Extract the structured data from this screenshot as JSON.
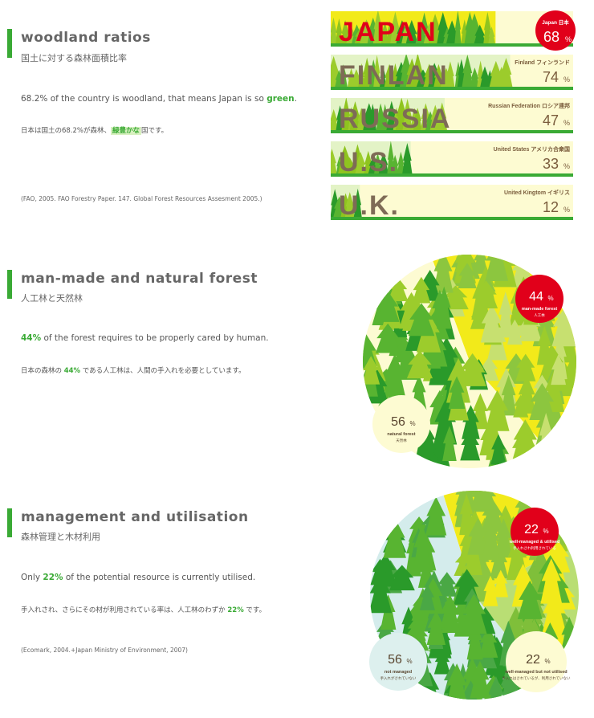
{
  "colors": {
    "accent": "#3aaa35",
    "red_badge": "#e1001a",
    "cream": "#fdfbd2",
    "yellow": "#f2ea1a",
    "light_green": "#9ccc2c",
    "mid_green": "#58b431",
    "dark_green": "#2a9a2a",
    "pale_blue": "#d4ecec",
    "country_letters": "#7e6b56"
  },
  "section1": {
    "title": "woodland ratios",
    "subtitle": "国土に対する森林面積比率",
    "body_en_pre": "68.2% of the country is woodland, that means Japan is so ",
    "body_en_hl": "green",
    "body_en_post": ".",
    "body_jp_pre": "日本は国土の68.2%が森林、",
    "body_jp_hl": "緑豊かな",
    "body_jp_post": "国です。",
    "source": "(FAO, 2005. FAO Forestry Paper. 147. Global Forest Resources Assesment 2005.)"
  },
  "section2": {
    "title": "man-made and natural forest",
    "subtitle": "人工林と天然林",
    "body_en_hl": "44%",
    "body_en_post": " of the forest requires to be properly cared by human.",
    "body_jp_pre": "日本の森林の ",
    "body_jp_hl": "44%",
    "body_jp_post": " である人工林は、人間の手入れを必要としています。"
  },
  "section3": {
    "title": "management and utilisation",
    "subtitle": "森林管理と木材利用",
    "body_en_pre": "Only ",
    "body_en_hl": "22%",
    "body_en_post": " of the potential resource is currently utilised.",
    "body_jp_pre": "手入れされ、さらにその材が利用されている率は、人工林のわずか ",
    "body_jp_hl": "22%",
    "body_jp_post": " です。",
    "source": "(Ecomark, 2004.+Japan Ministry of Environment, 2007)"
  },
  "chart_data": [
    {
      "type": "bar",
      "categories": [
        "JAPAN",
        "FINLAN",
        "RUSSIA",
        "U.S.",
        "U.K."
      ],
      "labels": [
        "Japan 日本",
        "Finland フィンランド",
        "Russian Federation ロシア連邦",
        "United States アメリカ合衆国",
        "United Kingtom イギリス"
      ],
      "values": [
        68,
        74,
        47,
        33,
        12
      ],
      "value_texts": [
        "68",
        "74",
        "47",
        "33",
        "12"
      ],
      "unit": "%",
      "ylim": [
        0,
        100
      ]
    },
    {
      "type": "pie",
      "slices": [
        {
          "name": "man-made forest",
          "name_jp": "人工林",
          "value": 44,
          "value_text": "44"
        },
        {
          "name": "natural forest",
          "name_jp": "天然林",
          "value": 56,
          "value_text": "56"
        }
      ],
      "unit": "%"
    },
    {
      "type": "pie",
      "slices": [
        {
          "name": "well-managed & utilised",
          "name_jp": "手入れされ利用されている",
          "value": 22,
          "value_text": "22"
        },
        {
          "name": "well-managed but not utilised",
          "name_jp": "手入れはされているが、利用されていない",
          "value": 22,
          "value_text": "22"
        },
        {
          "name": "not managed",
          "name_jp": "手入れがされていない",
          "value": 56,
          "value_text": "56"
        }
      ],
      "unit": "%"
    }
  ]
}
